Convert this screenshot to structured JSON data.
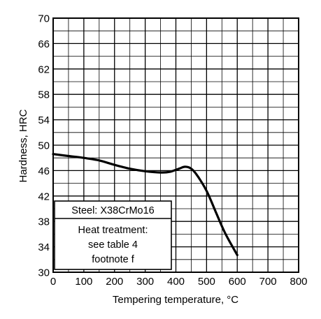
{
  "chart_data": {
    "type": "line",
    "title": "",
    "xlabel": "Tempering temperature, °C",
    "ylabel": "Hardness, HRC",
    "xlim": [
      0,
      800
    ],
    "ylim": [
      30,
      70
    ],
    "x_major_ticks": [
      0,
      100,
      200,
      300,
      400,
      500,
      600,
      700,
      800
    ],
    "y_major_ticks": [
      30,
      34,
      38,
      42,
      46,
      50,
      54,
      58,
      62,
      66,
      70
    ],
    "x_minor_step": 50,
    "y_minor_step": 2,
    "grid": true,
    "series": [
      {
        "x": [
          0,
          50,
          100,
          150,
          200,
          250,
          300,
          350,
          380,
          410,
          430,
          450,
          470,
          500,
          530,
          560,
          600
        ],
        "y": [
          48.6,
          48.3,
          48.0,
          47.6,
          46.9,
          46.3,
          45.9,
          45.7,
          45.8,
          46.3,
          46.6,
          46.3,
          45.2,
          42.8,
          39.5,
          36.2,
          32.7
        ]
      }
    ],
    "annotation": {
      "steel_label": "Steel: X38CrMo16",
      "treatment_lines": [
        "Heat treatment:",
        "see table 4",
        "footnote f"
      ]
    }
  }
}
